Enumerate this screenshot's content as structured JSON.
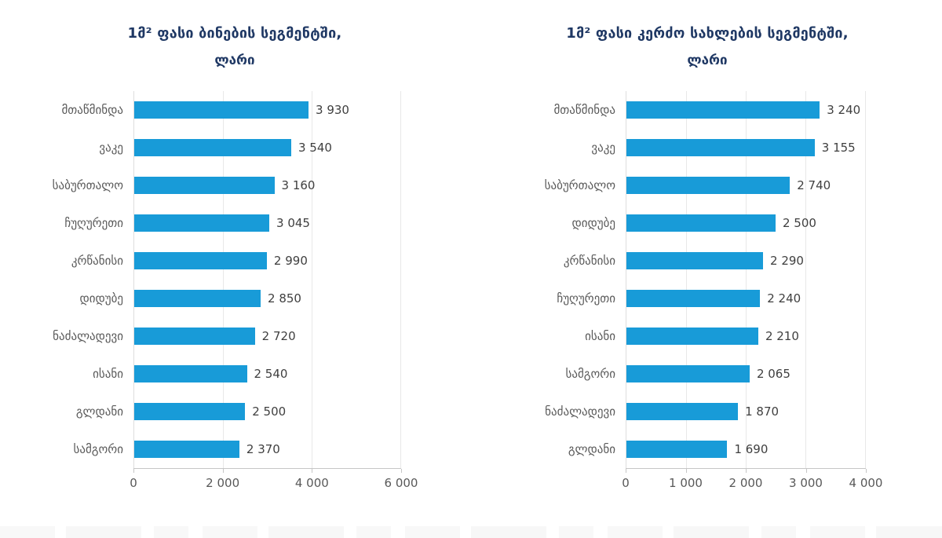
{
  "page": {
    "background": "#ffffff"
  },
  "colors": {
    "bar": "#189bd8",
    "title_text": "#1f3864",
    "category_label": "#595959",
    "value_label": "#3f3f3f",
    "gridline": "#e8e8e8",
    "axis_line": "#c6c6c6"
  },
  "chart_data": [
    {
      "type": "bar",
      "orientation": "horizontal",
      "title": "1მ² ფასი ბინების სეგმენტში,",
      "subtitle": "ლარი",
      "categories": [
        "მთაწმინდა",
        "ვაკე",
        "საბურთალო",
        "ჩუღურეთი",
        "კრწანისი",
        "დიდუბე",
        "ნაძალადევი",
        "ისანი",
        "გლდანი",
        "სამგორი"
      ],
      "values": [
        3930,
        3540,
        3160,
        3045,
        2990,
        2850,
        2720,
        2540,
        2500,
        2370
      ],
      "value_labels": [
        "3 930",
        "3 540",
        "3 160",
        "3 045",
        "2 990",
        "2 850",
        "2 720",
        "2 540",
        "2 500",
        "2 370"
      ],
      "xlabel": "",
      "ylabel": "",
      "xlim": [
        0,
        6000
      ],
      "tick_values": [
        0,
        2000,
        4000,
        6000
      ],
      "tick_labels": [
        "0",
        "2 000",
        "4 000",
        "6 000"
      ],
      "grid": true,
      "legend": false
    },
    {
      "type": "bar",
      "orientation": "horizontal",
      "title": "1მ² ფასი კერძო სახლების სეგმენტში,",
      "subtitle": "ლარი",
      "categories": [
        "მთაწმინდა",
        "ვაკე",
        "საბურთალო",
        "დიდუბე",
        "კრწანისი",
        "ჩუღურეთი",
        "ისანი",
        "სამგორი",
        "ნაძალადევი",
        "გლდანი"
      ],
      "values": [
        3240,
        3155,
        2740,
        2500,
        2290,
        2240,
        2210,
        2065,
        1870,
        1690
      ],
      "value_labels": [
        "3 240",
        "3 155",
        "2 740",
        "2 500",
        "2 290",
        "2 240",
        "2 210",
        "2 065",
        "1 870",
        "1 690"
      ],
      "xlabel": "",
      "ylabel": "",
      "xlim": [
        0,
        4000
      ],
      "tick_values": [
        0,
        1000,
        2000,
        3000,
        4000
      ],
      "tick_labels": [
        "0",
        "1 000",
        "2 000",
        "3 000",
        "4 000"
      ],
      "grid": true,
      "legend": false
    }
  ]
}
